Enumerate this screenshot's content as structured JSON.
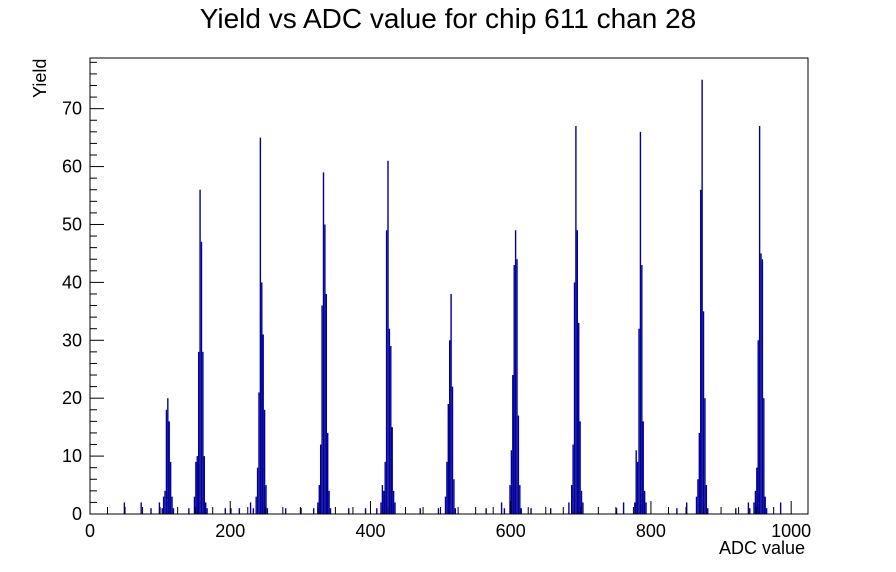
{
  "chart_data": {
    "type": "bar",
    "title": "Yield vs ADC value for chip 611 chan 28",
    "xlabel": "ADC value",
    "ylabel": "Yield",
    "xlim": [
      0,
      1024
    ],
    "ylim": [
      0,
      78.75
    ],
    "x_ticks": [
      0,
      200,
      400,
      600,
      800,
      1000
    ],
    "y_ticks": [
      0,
      10,
      20,
      30,
      40,
      50,
      60,
      70
    ],
    "grid": false,
    "legend": "none",
    "bin_width": 2,
    "series_color": "#000099",
    "series": [
      {
        "points": [
          [
            48,
            2
          ],
          [
            72,
            2
          ],
          [
            86,
            1
          ],
          [
            98,
            2
          ],
          [
            102,
            1
          ],
          [
            104,
            3
          ],
          [
            106,
            4
          ],
          [
            108,
            18
          ],
          [
            110,
            20
          ],
          [
            112,
            16
          ],
          [
            114,
            9
          ],
          [
            116,
            3
          ],
          [
            118,
            1
          ],
          [
            140,
            1
          ],
          [
            148,
            3
          ],
          [
            150,
            9
          ],
          [
            152,
            10
          ],
          [
            154,
            28
          ],
          [
            156,
            56
          ],
          [
            158,
            47
          ],
          [
            160,
            28
          ],
          [
            162,
            10
          ],
          [
            164,
            2
          ],
          [
            166,
            1
          ],
          [
            192,
            1
          ],
          [
            200,
            1
          ],
          [
            212,
            1
          ],
          [
            228,
            2
          ],
          [
            232,
            1
          ],
          [
            236,
            3
          ],
          [
            238,
            8
          ],
          [
            240,
            21
          ],
          [
            242,
            65
          ],
          [
            244,
            40
          ],
          [
            246,
            31
          ],
          [
            248,
            18
          ],
          [
            250,
            5
          ],
          [
            252,
            1
          ],
          [
            278,
            1
          ],
          [
            300,
            1
          ],
          [
            318,
            1
          ],
          [
            324,
            2
          ],
          [
            326,
            5
          ],
          [
            328,
            12
          ],
          [
            330,
            36
          ],
          [
            332,
            59
          ],
          [
            334,
            50
          ],
          [
            336,
            38
          ],
          [
            338,
            14
          ],
          [
            340,
            4
          ],
          [
            342,
            1
          ],
          [
            368,
            1
          ],
          [
            392,
            1
          ],
          [
            408,
            1
          ],
          [
            414,
            2
          ],
          [
            416,
            5
          ],
          [
            418,
            4
          ],
          [
            420,
            9
          ],
          [
            422,
            49
          ],
          [
            424,
            61
          ],
          [
            426,
            32
          ],
          [
            428,
            29
          ],
          [
            430,
            15
          ],
          [
            432,
            4
          ],
          [
            434,
            2
          ],
          [
            470,
            1
          ],
          [
            496,
            1
          ],
          [
            506,
            3
          ],
          [
            508,
            9
          ],
          [
            510,
            19
          ],
          [
            512,
            30
          ],
          [
            514,
            38
          ],
          [
            516,
            22
          ],
          [
            518,
            6
          ],
          [
            520,
            1
          ],
          [
            564,
            1
          ],
          [
            586,
            2
          ],
          [
            590,
            1
          ],
          [
            598,
            5
          ],
          [
            600,
            11
          ],
          [
            602,
            24
          ],
          [
            604,
            43
          ],
          [
            606,
            49
          ],
          [
            608,
            44
          ],
          [
            610,
            17
          ],
          [
            612,
            5
          ],
          [
            614,
            1
          ],
          [
            628,
            1
          ],
          [
            656,
            1
          ],
          [
            682,
            2
          ],
          [
            686,
            5
          ],
          [
            688,
            12
          ],
          [
            690,
            40
          ],
          [
            692,
            67
          ],
          [
            694,
            49
          ],
          [
            696,
            33
          ],
          [
            698,
            16
          ],
          [
            700,
            4
          ],
          [
            702,
            2
          ],
          [
            750,
            1
          ],
          [
            760,
            2
          ],
          [
            776,
            2
          ],
          [
            778,
            11
          ],
          [
            780,
            9
          ],
          [
            782,
            32
          ],
          [
            784,
            66
          ],
          [
            786,
            43
          ],
          [
            788,
            16
          ],
          [
            790,
            4
          ],
          [
            792,
            2
          ],
          [
            836,
            1
          ],
          [
            850,
            2
          ],
          [
            864,
            3
          ],
          [
            866,
            6
          ],
          [
            868,
            14
          ],
          [
            870,
            56
          ],
          [
            872,
            75
          ],
          [
            874,
            35
          ],
          [
            876,
            20
          ],
          [
            878,
            5
          ],
          [
            880,
            1
          ],
          [
            920,
            1
          ],
          [
            938,
            2
          ],
          [
            940,
            1
          ],
          [
            946,
            2
          ],
          [
            948,
            4
          ],
          [
            950,
            8
          ],
          [
            952,
            30
          ],
          [
            954,
            67
          ],
          [
            956,
            45
          ],
          [
            958,
            44
          ],
          [
            960,
            20
          ],
          [
            962,
            3
          ],
          [
            964,
            1
          ],
          [
            984,
            2
          ]
        ]
      }
    ]
  }
}
